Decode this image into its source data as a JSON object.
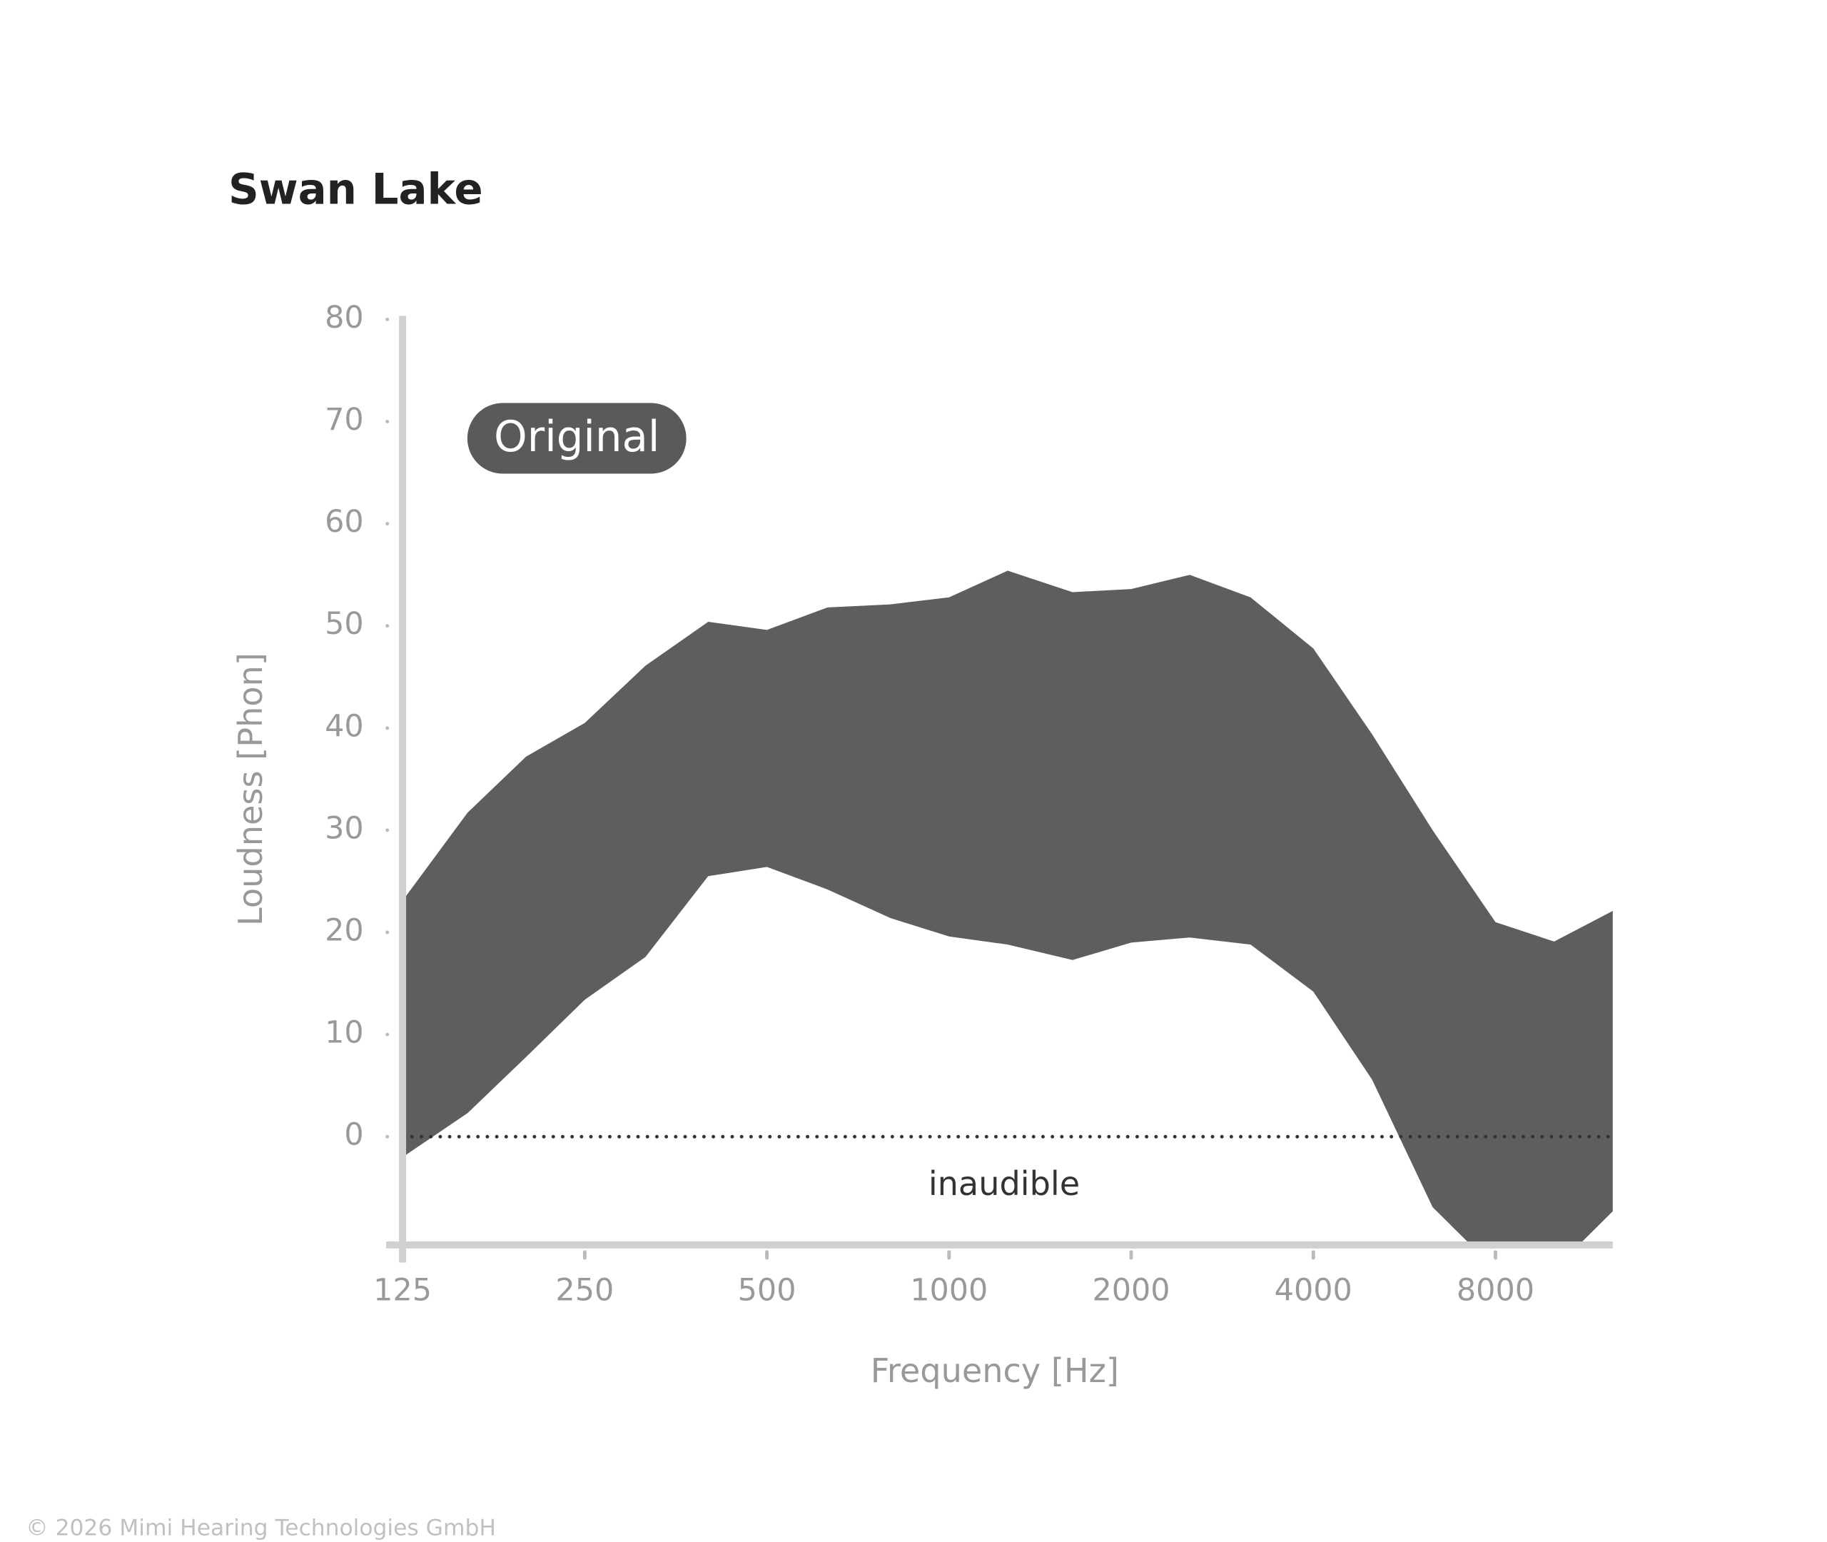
{
  "chart_data": {
    "type": "range-area",
    "title": "Swan Lake",
    "label": "Original",
    "x": [
      125,
      160,
      200,
      250,
      315,
      400,
      500,
      630,
      800,
      1000,
      1250,
      1600,
      2000,
      2500,
      3150,
      4000,
      5000,
      6300,
      8000,
      10000,
      12500
    ],
    "upper": [
      23.1,
      31.7,
      37.2,
      40.5,
      46.1,
      50.4,
      49.6,
      51.8,
      52.1,
      52.8,
      55.4,
      53.3,
      53.6,
      55.0,
      52.8,
      47.8,
      39.4,
      30.0,
      21.0,
      19.1,
      22.1
    ],
    "lower": [
      -2.0,
      2.3,
      7.8,
      13.4,
      17.6,
      25.5,
      26.4,
      24.2,
      21.4,
      19.6,
      18.8,
      17.3,
      19.0,
      19.5,
      18.8,
      14.2,
      5.6,
      -6.9,
      -13,
      -13,
      -7.3
    ],
    "color": "#5e5e5e",
    "xlog": true,
    "xlim": [
      125,
      12500
    ],
    "xticks": [
      125,
      250,
      500,
      1000,
      2000,
      4000,
      8000
    ],
    "ylim": [
      -10.6,
      80
    ],
    "yticks": [
      0,
      10,
      20,
      30,
      40,
      50,
      60,
      70,
      80
    ],
    "xlabel": "Frequency [Hz]",
    "ylabel": "Loudness [Phon]",
    "annotation": "inaudible"
  },
  "footer": "© 2026 Mimi Hearing Technologies GmbH"
}
